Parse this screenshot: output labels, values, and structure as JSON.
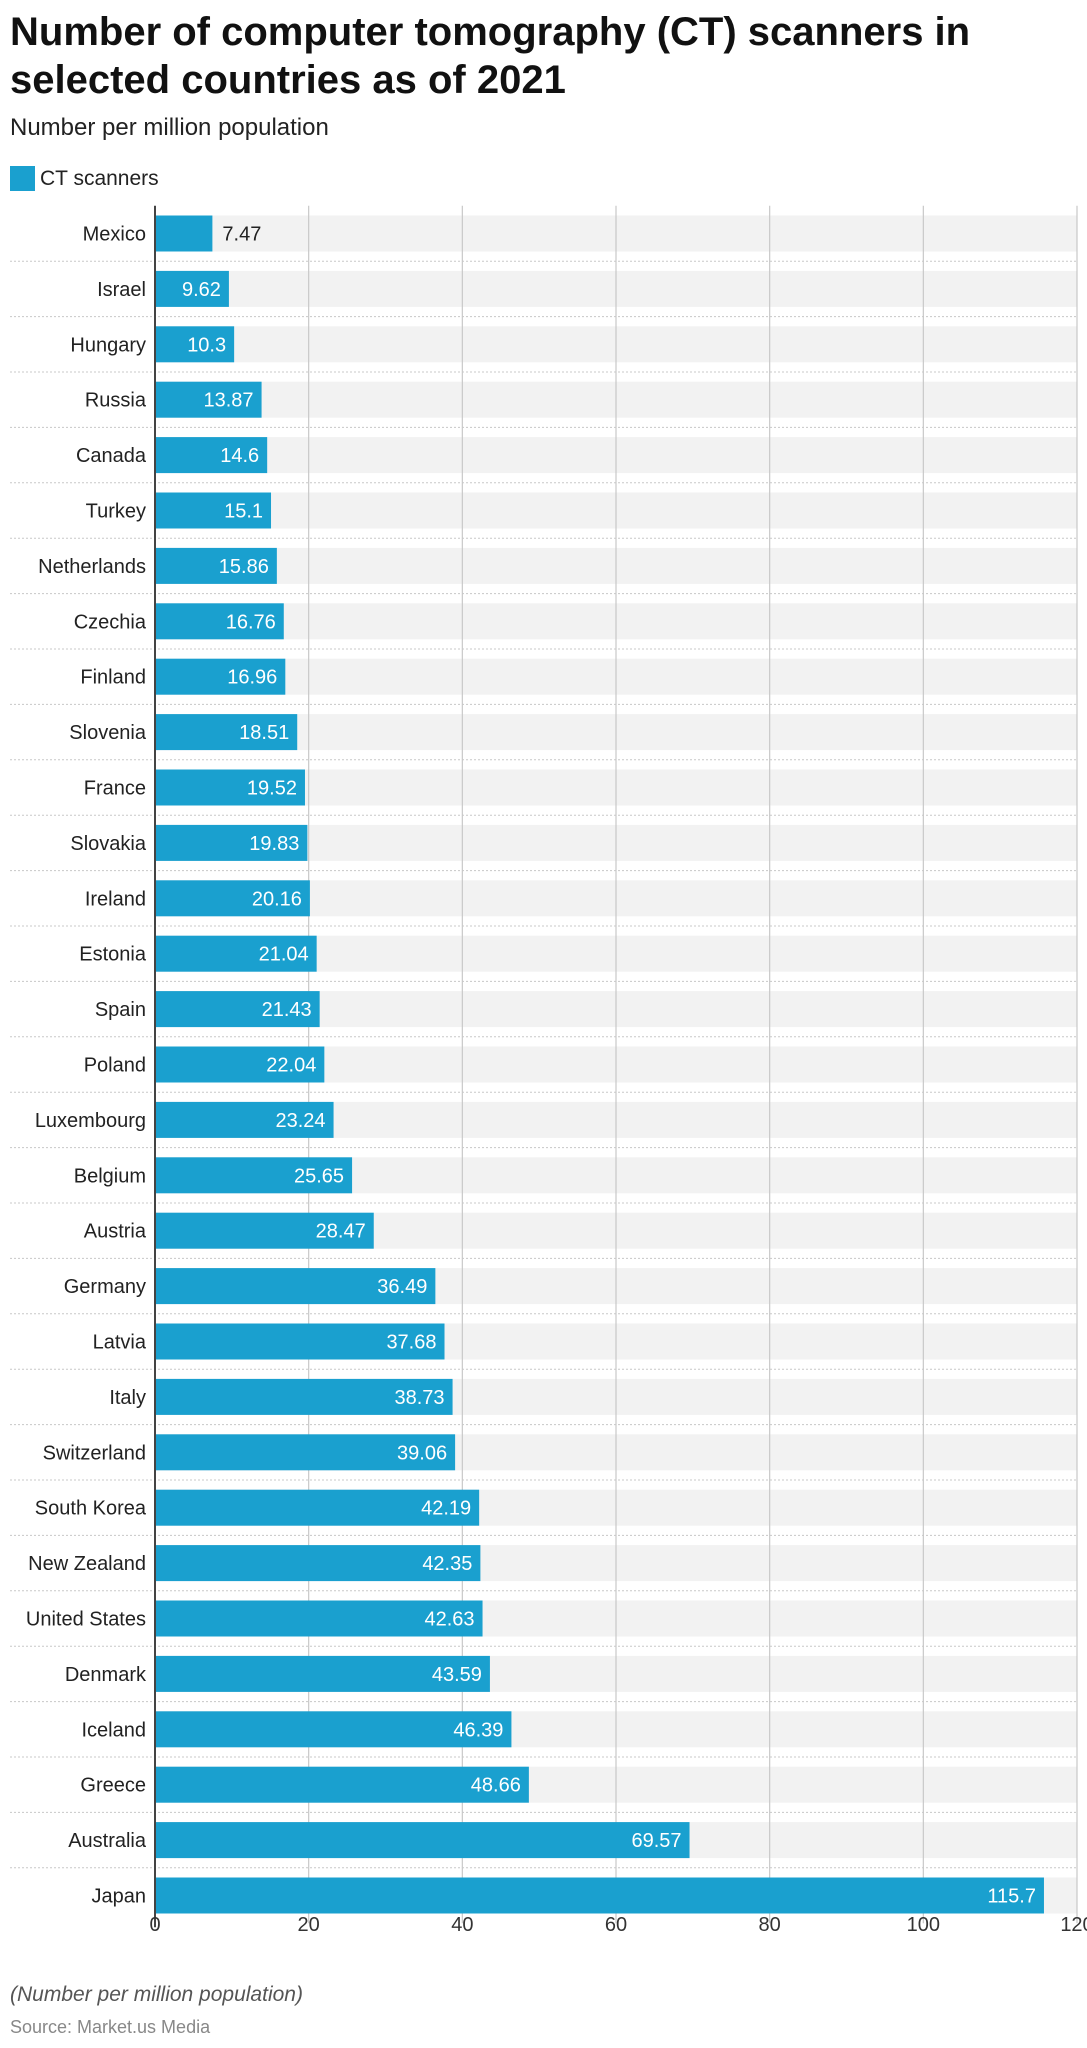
{
  "title": "Number of computer tomography (CT) scanners in selected countries as of 2021",
  "subtitle": "Number per million population",
  "legend": {
    "label": "CT scanners"
  },
  "colors": {
    "bar": "#1aa0cf",
    "band": "#f2f2f2",
    "grid": "#c8c8c8",
    "axis": "#444444",
    "separator": "#c8c8c8"
  },
  "footnote": "(Number per million population)",
  "source": "Source: Market.us Media",
  "chart_data": {
    "type": "bar",
    "orientation": "horizontal",
    "title": "Number of computer tomography (CT) scanners in selected countries as of 2021",
    "xlabel": "",
    "ylabel": "",
    "xlim": [
      0,
      120
    ],
    "ticks": [
      0,
      20,
      40,
      60,
      80,
      100,
      120
    ],
    "grid": true,
    "legend_position": "top-left",
    "series": [
      {
        "name": "CT scanners",
        "categories": [
          "Mexico",
          "Israel",
          "Hungary",
          "Russia",
          "Canada",
          "Turkey",
          "Netherlands",
          "Czechia",
          "Finland",
          "Slovenia",
          "France",
          "Slovakia",
          "Ireland",
          "Estonia",
          "Spain",
          "Poland",
          "Luxembourg",
          "Belgium",
          "Austria",
          "Germany",
          "Latvia",
          "Italy",
          "Switzerland",
          "South Korea",
          "New Zealand",
          "United States",
          "Denmark",
          "Iceland",
          "Greece",
          "Australia",
          "Japan"
        ],
        "values": [
          7.47,
          9.62,
          10.3,
          13.87,
          14.6,
          15.1,
          15.86,
          16.76,
          16.96,
          18.51,
          19.52,
          19.83,
          20.16,
          21.04,
          21.43,
          22.04,
          23.24,
          25.65,
          28.47,
          36.49,
          37.68,
          38.73,
          39.06,
          42.19,
          42.35,
          42.63,
          43.59,
          46.39,
          48.66,
          69.57,
          115.7
        ]
      }
    ]
  }
}
